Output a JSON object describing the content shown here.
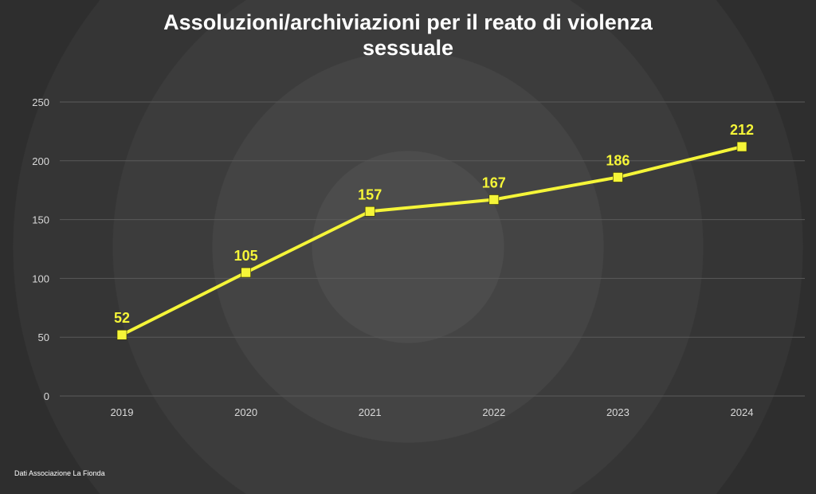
{
  "chart_data": {
    "type": "line",
    "title": "Assoluzioni/archiviazioni per il reato di violenza sessuale",
    "title_lines": [
      "Assoluzioni/archiviazioni per il reato di violenza",
      "sessuale"
    ],
    "categories": [
      "2019",
      "2020",
      "2021",
      "2022",
      "2023",
      "2024"
    ],
    "series": [
      {
        "values": [
          52,
          105,
          157,
          167,
          186,
          212
        ]
      }
    ],
    "data_labels": [
      "52",
      "105",
      "157",
      "167",
      "186",
      "212"
    ],
    "y_ticks": [
      0,
      50,
      100,
      150,
      200,
      250
    ],
    "ylim": [
      0,
      250
    ],
    "xlabel": "",
    "ylabel": "",
    "grid": true,
    "legend": "none",
    "colors": {
      "line": "#f5f538",
      "marker": "#f5f538",
      "data_label": "#f5f538",
      "tick_label": "#d9d9d9",
      "grid": "#5a5a5a",
      "title": "#ffffff"
    }
  },
  "footer": {
    "source": "Dati Associazione La Fionda"
  }
}
